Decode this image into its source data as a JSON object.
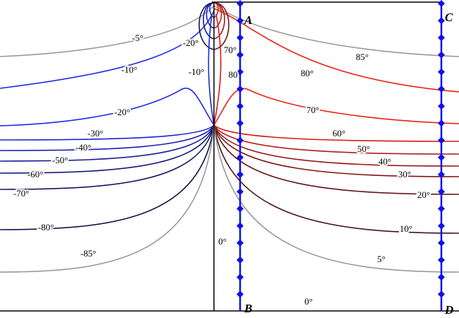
{
  "points": [
    "A",
    "B",
    "C",
    "D"
  ],
  "left_contours": [
    "-5°",
    "-10°",
    "-20°",
    "-30°",
    "-40°",
    "-50°",
    "-60°",
    "-70°",
    "-80°",
    "-85°"
  ],
  "right_contours": [
    "85°",
    "80°",
    "70°",
    "60°",
    "50°",
    "40°",
    "30°",
    "20°",
    "10°",
    "5°"
  ],
  "inner_labels": [
    "-20°",
    "-10°",
    "70°",
    "80"
  ],
  "zero_labels": [
    "0°",
    "0°"
  ]
}
